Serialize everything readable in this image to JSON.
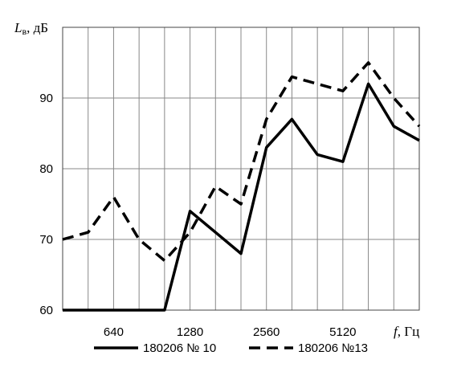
{
  "chart_data": {
    "type": "line",
    "title": "",
    "ylabel_var": "L",
    "ylabel_sub": "в",
    "ylabel_unit": ", дБ",
    "xlabel_var": "f",
    "xlabel_unit": ", Гц",
    "x": [
      1,
      2,
      3,
      4,
      5,
      6,
      7,
      8,
      9,
      10,
      11,
      12,
      13,
      14,
      15
    ],
    "xlim": [
      0,
      14
    ],
    "ylim": [
      60,
      100
    ],
    "yticks": [
      60,
      70,
      80,
      90
    ],
    "xtick_labels": [
      {
        "x": 2,
        "label": "640"
      },
      {
        "x": 5,
        "label": "1280"
      },
      {
        "x": 8,
        "label": "2560"
      },
      {
        "x": 11,
        "label": "5120"
      }
    ],
    "grid": true,
    "legend_position": "bottom",
    "series": [
      {
        "name": "180206 № 10",
        "style": "solid",
        "color": "#000000",
        "x": [
          0,
          1,
          2,
          3,
          4,
          5,
          6,
          7,
          8,
          9,
          10,
          11,
          12,
          13,
          14
        ],
        "values": [
          60,
          60,
          60,
          60,
          60,
          74,
          71,
          68,
          83,
          87,
          82,
          81,
          92,
          86,
          84
        ]
      },
      {
        "name": "180206 №13",
        "style": "dashed",
        "color": "#000000",
        "x": [
          0,
          1,
          2,
          3,
          4,
          5,
          6,
          7,
          8,
          9,
          10,
          11,
          12,
          13,
          14
        ],
        "values": [
          70,
          71,
          76,
          70,
          67,
          71,
          77.5,
          75,
          87,
          93,
          92,
          91,
          95,
          90,
          86
        ]
      }
    ]
  }
}
